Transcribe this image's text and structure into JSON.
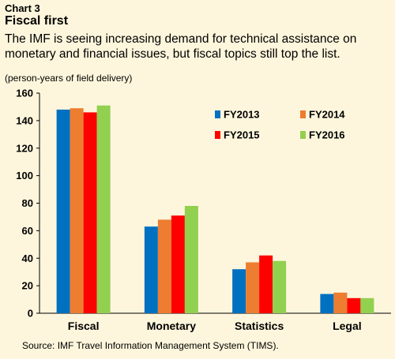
{
  "header": {
    "chart_label": "Chart 3",
    "title": "Fiscal first",
    "subtitle_line1": "The IMF is seeing increasing demand for technical assistance on",
    "subtitle_line2": "monetary and financial issues, but fiscal topics still top the list.",
    "unit_note": "(person-years of field delivery)"
  },
  "footer": {
    "source": "Source: IMF Travel Information Management System (TIMS)."
  },
  "chart_data": {
    "type": "bar",
    "categories": [
      "Fiscal",
      "Monetary",
      "Statistics",
      "Legal"
    ],
    "series": [
      {
        "name": "FY2013",
        "color": "#0070c0",
        "values": [
          148,
          63,
          32,
          14
        ]
      },
      {
        "name": "FY2014",
        "color": "#ed7d31",
        "values": [
          149,
          68,
          37,
          15
        ]
      },
      {
        "name": "FY2015",
        "color": "#ff0000",
        "values": [
          146,
          71,
          42,
          11
        ]
      },
      {
        "name": "FY2016",
        "color": "#92d050",
        "values": [
          151,
          78,
          38,
          11
        ]
      }
    ],
    "ylim": [
      0,
      160
    ],
    "yticks": [
      0,
      20,
      40,
      60,
      80,
      100,
      120,
      140,
      160
    ],
    "grid": false,
    "legend_position": "top-right"
  }
}
